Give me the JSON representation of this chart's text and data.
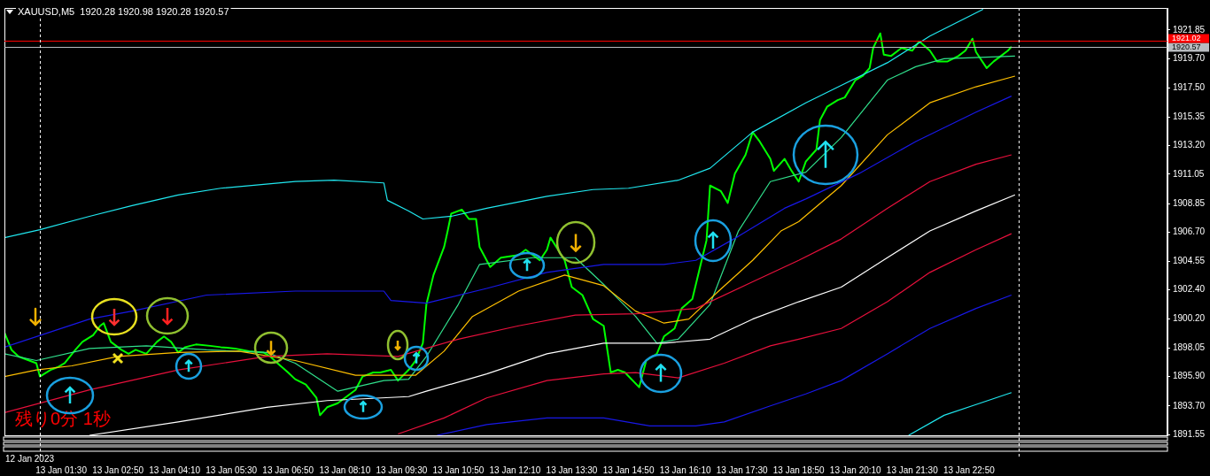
{
  "chart_data": {
    "type": "line",
    "title": "XAUUSD,M5  1920.28 1920.98 1920.28 1920.57",
    "annotations": [
      "残り0分 1秒",
      "12 Jan 2023"
    ],
    "xlim": [
      "2023-01-13T00:10",
      "2023-01-14T03:30"
    ],
    "xticks": [
      {
        "value": "2023-01-13T01:30",
        "label": "13 Jan 01:30"
      },
      {
        "value": "2023-01-13T02:50",
        "label": "13 Jan 02:50"
      },
      {
        "value": "2023-01-13T04:10",
        "label": "13 Jan 04:10"
      },
      {
        "value": "2023-01-13T05:30",
        "label": "13 Jan 05:30"
      },
      {
        "value": "2023-01-13T06:50",
        "label": "13 Jan 06:50"
      },
      {
        "value": "2023-01-13T08:10",
        "label": "13 Jan 08:10"
      },
      {
        "value": "2023-01-13T09:30",
        "label": "13 Jan 09:30"
      },
      {
        "value": "2023-01-13T10:50",
        "label": "13 Jan 10:50"
      },
      {
        "value": "2023-01-13T12:10",
        "label": "13 Jan 12:10"
      },
      {
        "value": "2023-01-13T13:30",
        "label": "13 Jan 13:30"
      },
      {
        "value": "2023-01-13T14:50",
        "label": "13 Jan 14:50"
      },
      {
        "value": "2023-01-13T16:10",
        "label": "13 Jan 16:10"
      },
      {
        "value": "2023-01-13T17:30",
        "label": "13 Jan 17:30"
      },
      {
        "value": "2023-01-13T18:50",
        "label": "13 Jan 18:50"
      },
      {
        "value": "2023-01-13T20:10",
        "label": "13 Jan 20:10"
      },
      {
        "value": "2023-01-13T21:30",
        "label": "13 Jan 21:30"
      },
      {
        "value": "2023-01-13T22:50",
        "label": "13 Jan 22:50"
      }
    ],
    "ylim": [
      1891.5,
      1923.5
    ],
    "yticks": [
      1921.85,
      {
        "value": 1919.7,
        "label": "1919.70"
      },
      {
        "value": 1917.5,
        "label": "1917.50"
      },
      1915.35,
      {
        "value": 1913.2,
        "label": "1913.20"
      },
      1911.05,
      1908.85,
      {
        "value": 1906.7,
        "label": "1906.70"
      },
      1904.55,
      {
        "value": 1902.4,
        "label": "1902.40"
      },
      {
        "value": 1900.2,
        "label": "1900.20"
      },
      1898.05,
      {
        "value": 1895.9,
        "label": "1895.90"
      },
      {
        "value": 1893.7,
        "label": "1893.70"
      },
      1891.55
    ],
    "grid": false,
    "legend": false,
    "marker": "none",
    "line_style": "solid",
    "ref_lines": [
      {
        "axis": "y",
        "value": 1921.02,
        "label": "1921.02",
        "color": "#ff0000"
      },
      {
        "axis": "y",
        "value": 1920.57,
        "label": "1920.57",
        "color": "#b8bcc0"
      },
      {
        "axis": "x",
        "value": "2023-01-13T01:00",
        "color": "#ffffff",
        "line_style": "dashed"
      },
      {
        "axis": "x",
        "value": "2023-01-14T00:00",
        "color": "#ffffff",
        "line_style": "dashed"
      }
    ],
    "series": [
      {
        "color": "#20e8f0",
        "x": [
          "2023-01-13T00:10",
          "2023-01-13T01:00",
          "2023-01-13T02:10",
          "2023-01-13T03:10",
          "2023-01-13T04:15",
          "2023-01-13T05:15",
          "2023-01-13T07:00",
          "2023-01-13T07:55",
          "2023-01-13T09:05",
          "2023-01-13T09:10",
          "2023-01-13T09:40",
          "2023-01-13T10:00",
          "2023-01-13T10:40",
          "2023-01-13T11:30",
          "2023-01-13T12:55",
          "2023-01-13T14:00",
          "2023-01-13T14:50",
          "2023-01-13T16:00",
          "2023-01-13T16:45",
          "2023-01-13T17:45",
          "2023-01-13T19:00",
          "2023-01-13T19:50",
          "2023-01-13T20:55",
          "2023-01-13T21:55",
          "2023-01-13T23:10"
        ],
        "values": [
          1906.3,
          1906.9,
          1907.9,
          1908.7,
          1909.5,
          1910.0,
          1910.5,
          1910.6,
          1910.4,
          1909.1,
          1908.3,
          1907.7,
          1907.9,
          1908.5,
          1909.4,
          1909.9,
          1910.0,
          1910.6,
          1911.5,
          1914.2,
          1916.4,
          1917.7,
          1919.4,
          1921.4,
          1923.4
        ]
      },
      {
        "color": "#1818e8",
        "x": [
          "2023-01-13T00:10",
          "2023-01-13T02:10",
          "2023-01-13T03:10",
          "2023-01-13T04:55",
          "2023-01-13T07:00",
          "2023-01-13T09:05",
          "2023-01-13T09:15",
          "2023-01-13T10:05",
          "2023-01-13T11:30",
          "2023-01-13T12:55",
          "2023-01-13T14:15",
          "2023-01-13T15:40",
          "2023-01-13T16:25",
          "2023-01-13T17:25",
          "2023-01-13T18:30",
          "2023-01-13T19:00",
          "2023-01-13T20:15",
          "2023-01-13T21:35",
          "2023-01-13T23:00",
          "2023-01-13T23:50"
        ],
        "values": [
          1898.1,
          1900.2,
          1900.8,
          1902.0,
          1902.3,
          1902.3,
          1901.6,
          1901.4,
          1902.5,
          1903.7,
          1904.3,
          1904.3,
          1904.6,
          1906.4,
          1908.5,
          1909.2,
          1911.1,
          1913.5,
          1915.7,
          1916.9
        ]
      },
      {
        "color": "#e8103c",
        "x": [
          "2023-01-13T00:10",
          "2023-01-13T02:10",
          "2023-01-13T04:15",
          "2023-01-13T06:20",
          "2023-01-13T07:45",
          "2023-01-13T09:25",
          "2023-01-13T10:50",
          "2023-01-13T12:15",
          "2023-01-13T13:35",
          "2023-01-13T15:00",
          "2023-01-13T16:25",
          "2023-01-13T17:45",
          "2023-01-13T18:50",
          "2023-01-13T19:50",
          "2023-01-13T20:55",
          "2023-01-13T21:55",
          "2023-01-13T23:00",
          "2023-01-13T23:50"
        ],
        "values": [
          1893.2,
          1894.9,
          1896.4,
          1897.4,
          1897.6,
          1897.4,
          1898.7,
          1899.7,
          1900.5,
          1900.6,
          1901.0,
          1903.0,
          1904.6,
          1906.2,
          1908.5,
          1910.5,
          1911.8,
          1912.5
        ]
      },
      {
        "color": "#ffffff",
        "x": [
          "2023-01-13T02:10",
          "2023-01-13T04:15",
          "2023-01-13T06:20",
          "2023-01-13T07:45",
          "2023-01-13T09:40",
          "2023-01-13T10:05",
          "2023-01-13T11:30",
          "2023-01-13T12:55",
          "2023-01-13T14:15",
          "2023-01-13T15:40",
          "2023-01-13T16:45",
          "2023-01-13T17:45",
          "2023-01-13T18:50",
          "2023-01-13T19:50",
          "2023-01-13T20:55",
          "2023-01-13T21:55",
          "2023-01-13T23:00",
          "2023-01-13T23:55"
        ],
        "values": [
          1891.5,
          1892.5,
          1893.6,
          1894.1,
          1894.4,
          1894.8,
          1896.1,
          1897.6,
          1898.4,
          1898.4,
          1898.7,
          1900.2,
          1901.5,
          1902.6,
          1904.8,
          1906.8,
          1908.3,
          1909.5
        ]
      },
      {
        "color": "#e8103c",
        "x": [
          "2023-01-13T09:25",
          "2023-01-13T10:30",
          "2023-01-13T11:30",
          "2023-01-13T12:55",
          "2023-01-13T14:15",
          "2023-01-13T15:00",
          "2023-01-13T16:00",
          "2023-01-13T17:05",
          "2023-01-13T18:10",
          "2023-01-13T18:50",
          "2023-01-13T19:50",
          "2023-01-13T20:55",
          "2023-01-13T21:55",
          "2023-01-13T23:00",
          "2023-01-13T23:50"
        ],
        "values": [
          1891.6,
          1892.8,
          1894.3,
          1895.6,
          1896.1,
          1896.2,
          1895.8,
          1896.9,
          1898.2,
          1898.7,
          1899.5,
          1901.5,
          1903.7,
          1905.4,
          1906.6
        ]
      },
      {
        "color": "#1818e8",
        "x": [
          "2023-01-13T10:20",
          "2023-01-13T11:30",
          "2023-01-13T12:55",
          "2023-01-13T14:15",
          "2023-01-13T15:20",
          "2023-01-13T16:25",
          "2023-01-13T17:05",
          "2023-01-13T18:10",
          "2023-01-13T19:00",
          "2023-01-13T19:50",
          "2023-01-13T20:55",
          "2023-01-13T21:55",
          "2023-01-13T23:00",
          "2023-01-13T23:50"
        ],
        "values": [
          1891.5,
          1892.3,
          1892.8,
          1892.8,
          1892.2,
          1892.2,
          1892.5,
          1893.7,
          1894.6,
          1895.6,
          1897.6,
          1899.5,
          1901.0,
          1902.0
        ]
      },
      {
        "color": "#20e8f0",
        "x": [
          "2023-01-13T21:25",
          "2023-01-13T22:15",
          "2023-01-13T23:00",
          "2023-01-13T23:50"
        ],
        "values": [
          1891.5,
          1893.0,
          1893.8,
          1894.7
        ]
      },
      {
        "color": "#ffc000",
        "x": [
          "2023-01-13T00:10",
          "2023-01-13T00:55",
          "2023-01-13T01:45",
          "2023-01-13T02:50",
          "2023-01-13T04:15",
          "2023-01-13T05:40",
          "2023-01-13T07:00",
          "2023-01-13T08:25",
          "2023-01-13T09:50",
          "2023-01-13T10:30",
          "2023-01-13T11:10",
          "2023-01-13T12:15",
          "2023-01-13T13:20",
          "2023-01-13T14:15",
          "2023-01-13T15:00",
          "2023-01-13T15:40",
          "2023-01-13T16:15",
          "2023-01-13T16:55",
          "2023-01-13T17:45",
          "2023-01-13T18:25",
          "2023-01-13T18:50",
          "2023-01-13T19:50",
          "2023-01-13T20:55",
          "2023-01-13T21:55",
          "2023-01-13T23:00",
          "2023-01-13T23:55"
        ],
        "values": [
          1895.9,
          1896.4,
          1896.7,
          1897.4,
          1897.7,
          1897.8,
          1897.1,
          1896.0,
          1896.0,
          1897.8,
          1900.4,
          1902.3,
          1903.5,
          1902.7,
          1900.8,
          1899.9,
          1900.2,
          1902.2,
          1904.6,
          1906.8,
          1907.5,
          1910.2,
          1914.0,
          1916.4,
          1917.6,
          1918.4
        ]
      },
      {
        "color": "#30e08c",
        "x": [
          "2023-01-13T00:10",
          "2023-01-13T00:55",
          "2023-01-13T02:10",
          "2023-01-13T03:30",
          "2023-01-13T04:55",
          "2023-01-13T06:20",
          "2023-01-13T07:00",
          "2023-01-13T08:00",
          "2023-01-13T09:05",
          "2023-01-13T09:40",
          "2023-01-13T10:05",
          "2023-01-13T10:50",
          "2023-01-13T11:20",
          "2023-01-13T12:35",
          "2023-01-13T13:35",
          "2023-01-13T14:15",
          "2023-01-13T15:00",
          "2023-01-13T15:30",
          "2023-01-13T16:00",
          "2023-01-13T16:45",
          "2023-01-13T17:25",
          "2023-01-13T18:10",
          "2023-01-13T19:00",
          "2023-01-13T19:50",
          "2023-01-13T20:55",
          "2023-01-13T21:35",
          "2023-01-13T22:15",
          "2023-01-13T23:55"
        ],
        "values": [
          1897.6,
          1897.1,
          1898.0,
          1898.2,
          1897.9,
          1897.7,
          1896.9,
          1894.8,
          1895.6,
          1895.7,
          1897.4,
          1901.3,
          1904.3,
          1904.8,
          1904.8,
          1902.8,
          1900.4,
          1898.4,
          1898.7,
          1901.3,
          1906.8,
          1910.5,
          1911.2,
          1913.8,
          1918.1,
          1919.1,
          1919.7,
          1919.9
        ]
      },
      {
        "color": "#00ff00",
        "x": [
          "2023-01-13T00:10",
          "2023-01-13T00:20",
          "2023-01-13T00:30",
          "2023-01-13T00:40",
          "2023-01-13T00:55",
          "2023-01-13T01:00",
          "2023-01-13T01:15",
          "2023-01-13T01:25",
          "2023-01-13T01:35",
          "2023-01-13T01:50",
          "2023-01-13T02:00",
          "2023-01-13T02:15",
          "2023-01-13T02:25",
          "2023-01-13T02:30",
          "2023-01-13T02:40",
          "2023-01-13T02:55",
          "2023-01-13T03:05",
          "2023-01-13T03:15",
          "2023-01-13T03:30",
          "2023-01-13T03:45",
          "2023-01-13T03:55",
          "2023-01-13T04:05",
          "2023-01-13T04:15",
          "2023-01-13T04:25",
          "2023-01-13T04:40",
          "2023-01-13T05:00",
          "2023-01-13T05:15",
          "2023-01-13T05:35",
          "2023-01-13T05:55",
          "2023-01-13T06:15",
          "2023-01-13T06:25",
          "2023-01-13T06:35",
          "2023-01-13T06:50",
          "2023-01-13T07:00",
          "2023-01-13T07:15",
          "2023-01-13T07:30",
          "2023-01-13T07:35",
          "2023-01-13T07:45",
          "2023-01-13T08:00",
          "2023-01-13T08:10",
          "2023-01-13T08:25",
          "2023-01-13T08:35",
          "2023-01-13T08:50",
          "2023-01-13T09:00",
          "2023-01-13T09:15",
          "2023-01-13T09:25",
          "2023-01-13T09:40",
          "2023-01-13T09:50",
          "2023-01-13T10:00",
          "2023-01-13T10:05",
          "2023-01-13T10:15",
          "2023-01-13T10:30",
          "2023-01-13T10:35",
          "2023-01-13T10:40",
          "2023-01-13T10:55",
          "2023-01-13T11:05",
          "2023-01-13T11:15",
          "2023-01-13T11:20",
          "2023-01-13T11:35",
          "2023-01-13T11:50",
          "2023-01-13T12:15",
          "2023-01-13T12:25",
          "2023-01-13T12:45",
          "2023-01-13T12:55",
          "2023-01-13T13:00",
          "2023-01-13T13:20",
          "2023-01-13T13:30",
          "2023-01-13T13:45",
          "2023-01-13T14:00",
          "2023-01-13T14:15",
          "2023-01-13T14:25",
          "2023-01-13T14:35",
          "2023-01-13T14:45",
          "2023-01-13T15:05",
          "2023-01-13T15:15",
          "2023-01-13T15:30",
          "2023-01-13T15:40",
          "2023-01-13T15:55",
          "2023-01-13T16:05",
          "2023-01-13T16:20",
          "2023-01-13T16:30",
          "2023-01-13T16:40",
          "2023-01-13T16:45",
          "2023-01-13T17:00",
          "2023-01-13T17:10",
          "2023-01-13T17:20",
          "2023-01-13T17:35",
          "2023-01-13T17:45",
          "2023-01-13T17:55",
          "2023-01-13T18:10",
          "2023-01-13T18:15",
          "2023-01-13T18:30",
          "2023-01-13T18:40",
          "2023-01-13T18:50",
          "2023-01-13T19:00",
          "2023-01-13T19:15",
          "2023-01-13T19:20",
          "2023-01-13T19:30",
          "2023-01-13T19:45",
          "2023-01-13T19:55",
          "2023-01-13T20:10",
          "2023-01-13T20:20",
          "2023-01-13T20:30",
          "2023-01-13T20:35",
          "2023-01-13T20:45",
          "2023-01-13T20:50",
          "2023-01-13T21:00",
          "2023-01-13T21:15",
          "2023-01-13T21:30",
          "2023-01-13T21:40",
          "2023-01-13T21:55",
          "2023-01-13T22:05",
          "2023-01-13T22:20",
          "2023-01-13T22:35",
          "2023-01-13T22:45",
          "2023-01-13T22:55",
          "2023-01-13T23:00",
          "2023-01-13T23:15",
          "2023-01-13T23:25",
          "2023-01-13T23:35",
          "2023-01-13T23:45",
          "2023-01-13T23:50"
        ],
        "values": [
          1899.2,
          1897.9,
          1897.4,
          1897.2,
          1896.9,
          1895.9,
          1896.4,
          1896.6,
          1896.9,
          1897.9,
          1898.5,
          1899.0,
          1899.7,
          1899.9,
          1898.5,
          1897.9,
          1897.6,
          1897.9,
          1897.6,
          1898.5,
          1898.9,
          1898.5,
          1897.7,
          1898.1,
          1898.3,
          1898.2,
          1898.1,
          1898.0,
          1897.8,
          1897.7,
          1897.4,
          1896.9,
          1896.2,
          1895.7,
          1895.3,
          1894.3,
          1893.0,
          1893.6,
          1893.9,
          1894.3,
          1894.9,
          1895.9,
          1896.2,
          1896.2,
          1896.4,
          1895.6,
          1896.4,
          1897.1,
          1898.4,
          1901.3,
          1903.5,
          1905.6,
          1906.8,
          1908.1,
          1908.4,
          1907.7,
          1907.7,
          1905.6,
          1904.1,
          1904.8,
          1905.0,
          1905.4,
          1904.6,
          1905.4,
          1906.3,
          1904.6,
          1902.6,
          1902.0,
          1900.2,
          1899.7,
          1896.2,
          1896.4,
          1896.2,
          1895.1,
          1897.1,
          1897.6,
          1898.9,
          1899.5,
          1901.0,
          1901.7,
          1903.9,
          1906.1,
          1910.2,
          1909.8,
          1908.9,
          1911.1,
          1912.5,
          1914.2,
          1913.5,
          1912.2,
          1911.3,
          1912.2,
          1911.3,
          1910.5,
          1912.0,
          1912.9,
          1915.1,
          1916.1,
          1916.6,
          1916.8,
          1918.1,
          1918.4,
          1919.0,
          1920.5,
          1921.6,
          1920.0,
          1919.9,
          1920.5,
          1920.3,
          1921.0,
          1920.3,
          1919.5,
          1919.5,
          1919.9,
          1920.3,
          1921.2,
          1920.2,
          1919.0,
          1919.5,
          1919.9,
          1920.3,
          1920.6
        ]
      }
    ]
  }
}
